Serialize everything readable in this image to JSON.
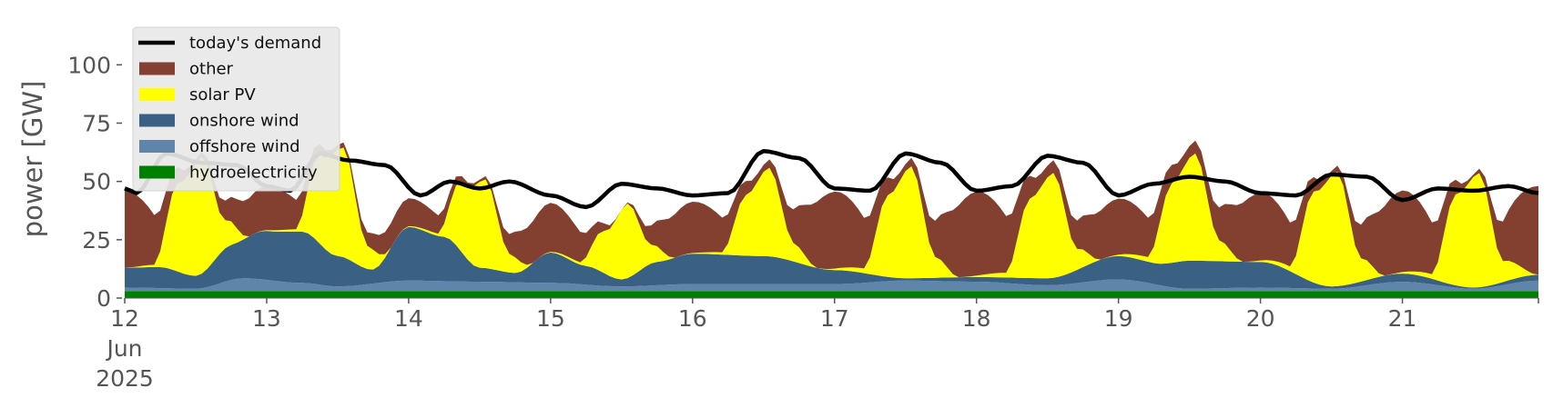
{
  "chart_data": {
    "type": "area",
    "ylabel": "power [GW]",
    "ylim": [
      0,
      120
    ],
    "yticks": [
      0,
      25,
      50,
      75,
      100
    ],
    "xlim": [
      "2025-06-12T00:00",
      "2025-06-21T23:00"
    ],
    "xticks": [
      {
        "date": "2025-06-12",
        "label": [
          "12",
          "Jun",
          "2025"
        ]
      },
      {
        "date": "2025-06-13",
        "label": [
          "13"
        ]
      },
      {
        "date": "2025-06-14",
        "label": [
          "14"
        ]
      },
      {
        "date": "2025-06-15",
        "label": [
          "15"
        ]
      },
      {
        "date": "2025-06-16",
        "label": [
          "16"
        ]
      },
      {
        "date": "2025-06-17",
        "label": [
          "17"
        ]
      },
      {
        "date": "2025-06-18",
        "label": [
          "18"
        ]
      },
      {
        "date": "2025-06-19",
        "label": [
          "19"
        ]
      },
      {
        "date": "2025-06-20",
        "label": [
          "20"
        ]
      },
      {
        "date": "2025-06-21",
        "label": [
          "21"
        ]
      }
    ],
    "grid": false,
    "legend_position": "top-left",
    "legend": [
      {
        "label": "today's demand",
        "kind": "line",
        "color": "#000000"
      },
      {
        "label": "other",
        "kind": "patch",
        "color": "#833f30"
      },
      {
        "label": "solar PV",
        "kind": "patch",
        "color": "#ffff00"
      },
      {
        "label": "onshore wind",
        "kind": "patch",
        "color": "#3a6083"
      },
      {
        "label": "offshore wind",
        "kind": "patch",
        "color": "#5f86aa"
      },
      {
        "label": "hydroelectricity",
        "kind": "patch",
        "color": "#008000"
      }
    ],
    "stack_order": [
      "hydroelectricity",
      "offshore wind",
      "onshore wind",
      "solar PV",
      "other"
    ],
    "series": [
      {
        "name": "hydroelectricity",
        "color": "#008000",
        "x": [
          "2025-06-12T00:00",
          "2025-06-12T12:00",
          "2025-06-13T00:00",
          "2025-06-13T12:00",
          "2025-06-14T00:00",
          "2025-06-14T12:00",
          "2025-06-15T00:00",
          "2025-06-15T12:00",
          "2025-06-16T00:00",
          "2025-06-16T12:00",
          "2025-06-17T00:00",
          "2025-06-17T12:00",
          "2025-06-18T00:00",
          "2025-06-18T12:00",
          "2025-06-19T00:00",
          "2025-06-19T12:00",
          "2025-06-20T00:00",
          "2025-06-20T12:00",
          "2025-06-21T00:00",
          "2025-06-21T12:00",
          "2025-06-21T23:00"
        ],
        "values": [
          3,
          3,
          3,
          3,
          3,
          3,
          3,
          3,
          3,
          3,
          3,
          3,
          3,
          3,
          3,
          3,
          3,
          3,
          3,
          3,
          3
        ]
      },
      {
        "name": "offshore wind",
        "color": "#5f86aa",
        "x": [
          "2025-06-12T00:00",
          "2025-06-12T12:00",
          "2025-06-12T20:00",
          "2025-06-13T06:00",
          "2025-06-13T12:00",
          "2025-06-14T00:00",
          "2025-06-14T12:00",
          "2025-06-15T00:00",
          "2025-06-15T12:00",
          "2025-06-16T00:00",
          "2025-06-16T12:00",
          "2025-06-17T00:00",
          "2025-06-17T12:00",
          "2025-06-18T00:00",
          "2025-06-18T12:00",
          "2025-06-19T00:00",
          "2025-06-19T12:00",
          "2025-06-20T00:00",
          "2025-06-20T12:00",
          "2025-06-21T00:00",
          "2025-06-21T12:00",
          "2025-06-21T23:00"
        ],
        "values": [
          1.5,
          1.0,
          5.5,
          3.5,
          2.0,
          4.5,
          4.0,
          3.5,
          2.0,
          3.0,
          3.0,
          3.0,
          4.5,
          4.0,
          2.5,
          5.0,
          1.0,
          1.5,
          1.0,
          4.0,
          1.0,
          4.5
        ]
      },
      {
        "name": "onshore wind",
        "color": "#3a6083",
        "x": [
          "2025-06-12T00:00",
          "2025-06-12T06:00",
          "2025-06-12T12:00",
          "2025-06-12T18:00",
          "2025-06-13T00:00",
          "2025-06-13T06:00",
          "2025-06-13T12:00",
          "2025-06-13T18:00",
          "2025-06-14T00:00",
          "2025-06-14T06:00",
          "2025-06-14T12:00",
          "2025-06-14T18:00",
          "2025-06-15T00:00",
          "2025-06-15T06:00",
          "2025-06-15T12:00",
          "2025-06-15T18:00",
          "2025-06-16T00:00",
          "2025-06-16T12:00",
          "2025-06-17T00:00",
          "2025-06-17T12:00",
          "2025-06-18T00:00",
          "2025-06-18T12:00",
          "2025-06-19T00:00",
          "2025-06-19T06:00",
          "2025-06-19T12:00",
          "2025-06-20T00:00",
          "2025-06-20T12:00",
          "2025-06-21T00:00",
          "2025-06-21T12:00",
          "2025-06-21T23:00"
        ],
        "values": [
          8.5,
          9.0,
          5.5,
          15.0,
          21.0,
          22.0,
          13.0,
          6.0,
          23.0,
          19.0,
          6.0,
          4.0,
          13.0,
          8.0,
          3.0,
          10.0,
          13.0,
          12.0,
          6.0,
          1.0,
          2.0,
          3.0,
          10.0,
          9.0,
          12.0,
          11.0,
          1.0,
          3.5,
          0.5,
          2.5
        ]
      },
      {
        "name": "solar PV",
        "color": "#ffff00",
        "x": [
          "2025-06-12T00:00",
          "2025-06-12T05:00",
          "2025-06-12T09:00",
          "2025-06-12T13:00",
          "2025-06-12T17:00",
          "2025-06-12T21:00",
          "2025-06-13T05:00",
          "2025-06-13T09:00",
          "2025-06-13T13:00",
          "2025-06-13T17:00",
          "2025-06-13T21:00",
          "2025-06-14T05:00",
          "2025-06-14T09:00",
          "2025-06-14T13:00",
          "2025-06-14T17:00",
          "2025-06-14T21:00",
          "2025-06-15T05:00",
          "2025-06-15T09:00",
          "2025-06-15T13:00",
          "2025-06-15T17:00",
          "2025-06-15T21:00",
          "2025-06-16T05:00",
          "2025-06-16T09:00",
          "2025-06-16T13:00",
          "2025-06-16T17:00",
          "2025-06-16T21:00",
          "2025-06-17T05:00",
          "2025-06-17T09:00",
          "2025-06-17T13:00",
          "2025-06-17T17:00",
          "2025-06-17T21:00",
          "2025-06-18T05:00",
          "2025-06-18T09:00",
          "2025-06-18T13:00",
          "2025-06-18T17:00",
          "2025-06-18T21:00",
          "2025-06-19T05:00",
          "2025-06-19T09:00",
          "2025-06-19T13:00",
          "2025-06-19T17:00",
          "2025-06-19T21:00",
          "2025-06-20T05:00",
          "2025-06-20T09:00",
          "2025-06-20T13:00",
          "2025-06-20T17:00",
          "2025-06-20T21:00",
          "2025-06-21T05:00",
          "2025-06-21T09:00",
          "2025-06-21T13:00",
          "2025-06-21T17:00",
          "2025-06-21T23:00"
        ],
        "values": [
          0,
          1,
          38,
          50,
          12,
          0,
          1,
          38,
          47,
          10,
          0,
          1,
          30,
          38,
          8,
          0,
          1,
          18,
          32,
          8,
          0,
          1,
          26,
          38,
          8,
          0,
          2,
          35,
          48,
          9,
          0,
          2,
          34,
          45,
          9,
          0,
          2,
          34,
          46,
          9,
          0,
          2,
          39,
          49,
          10,
          0,
          2,
          39,
          49,
          9,
          0
        ]
      },
      {
        "name": "other",
        "color": "#833f30",
        "x": [
          "2025-06-12T00:00",
          "2025-06-12T12:00",
          "2025-06-13T00:00",
          "2025-06-13T12:00",
          "2025-06-14T00:00",
          "2025-06-14T12:00",
          "2025-06-15T00:00",
          "2025-06-15T12:00",
          "2025-06-16T00:00",
          "2025-06-16T12:00",
          "2025-06-17T00:00",
          "2025-06-17T12:00",
          "2025-06-18T00:00",
          "2025-06-18T12:00",
          "2025-06-19T00:00",
          "2025-06-19T12:00",
          "2025-06-20T00:00",
          "2025-06-20T12:00",
          "2025-06-21T00:00",
          "2025-06-21T12:00",
          "2025-06-21T23:00"
        ],
        "values": [
          33,
          2,
          19,
          2,
          12,
          1,
          21,
          0,
          22,
          3,
          33,
          3,
          36,
          5,
          24,
          5,
          29,
          2,
          35,
          1,
          38
        ]
      },
      {
        "name": "today's demand",
        "color": "#000000",
        "x": [
          "2025-06-12T00:00",
          "2025-06-12T02:00",
          "2025-06-12T07:00",
          "2025-06-12T13:00",
          "2025-06-12T19:00",
          "2025-06-13T00:00",
          "2025-06-13T04:00",
          "2025-06-13T09:00",
          "2025-06-13T14:00",
          "2025-06-13T20:00",
          "2025-06-14T02:00",
          "2025-06-14T07:00",
          "2025-06-14T12:00",
          "2025-06-14T17:00",
          "2025-06-15T00:00",
          "2025-06-15T06:00",
          "2025-06-15T12:00",
          "2025-06-15T18:00",
          "2025-06-16T00:00",
          "2025-06-16T06:00",
          "2025-06-16T12:00",
          "2025-06-16T18:00",
          "2025-06-17T00:00",
          "2025-06-17T06:00",
          "2025-06-17T12:00",
          "2025-06-17T18:00",
          "2025-06-18T00:00",
          "2025-06-18T06:00",
          "2025-06-18T12:00",
          "2025-06-18T18:00",
          "2025-06-19T00:00",
          "2025-06-19T06:00",
          "2025-06-19T12:00",
          "2025-06-19T18:00",
          "2025-06-20T00:00",
          "2025-06-20T06:00",
          "2025-06-20T12:00",
          "2025-06-20T18:00",
          "2025-06-21T00:00",
          "2025-06-21T06:00",
          "2025-06-21T12:00",
          "2025-06-21T18:00",
          "2025-06-21T23:00"
        ],
        "values": [
          47,
          45,
          62,
          58,
          57,
          48,
          46,
          62,
          59,
          57,
          44,
          50,
          47,
          50,
          44,
          39,
          49,
          47,
          44,
          45,
          63,
          60,
          47,
          46,
          62,
          58,
          46,
          48,
          61,
          58,
          44,
          49,
          52,
          50,
          45,
          44,
          53,
          52,
          42,
          47,
          46,
          48,
          45
        ]
      }
    ]
  }
}
